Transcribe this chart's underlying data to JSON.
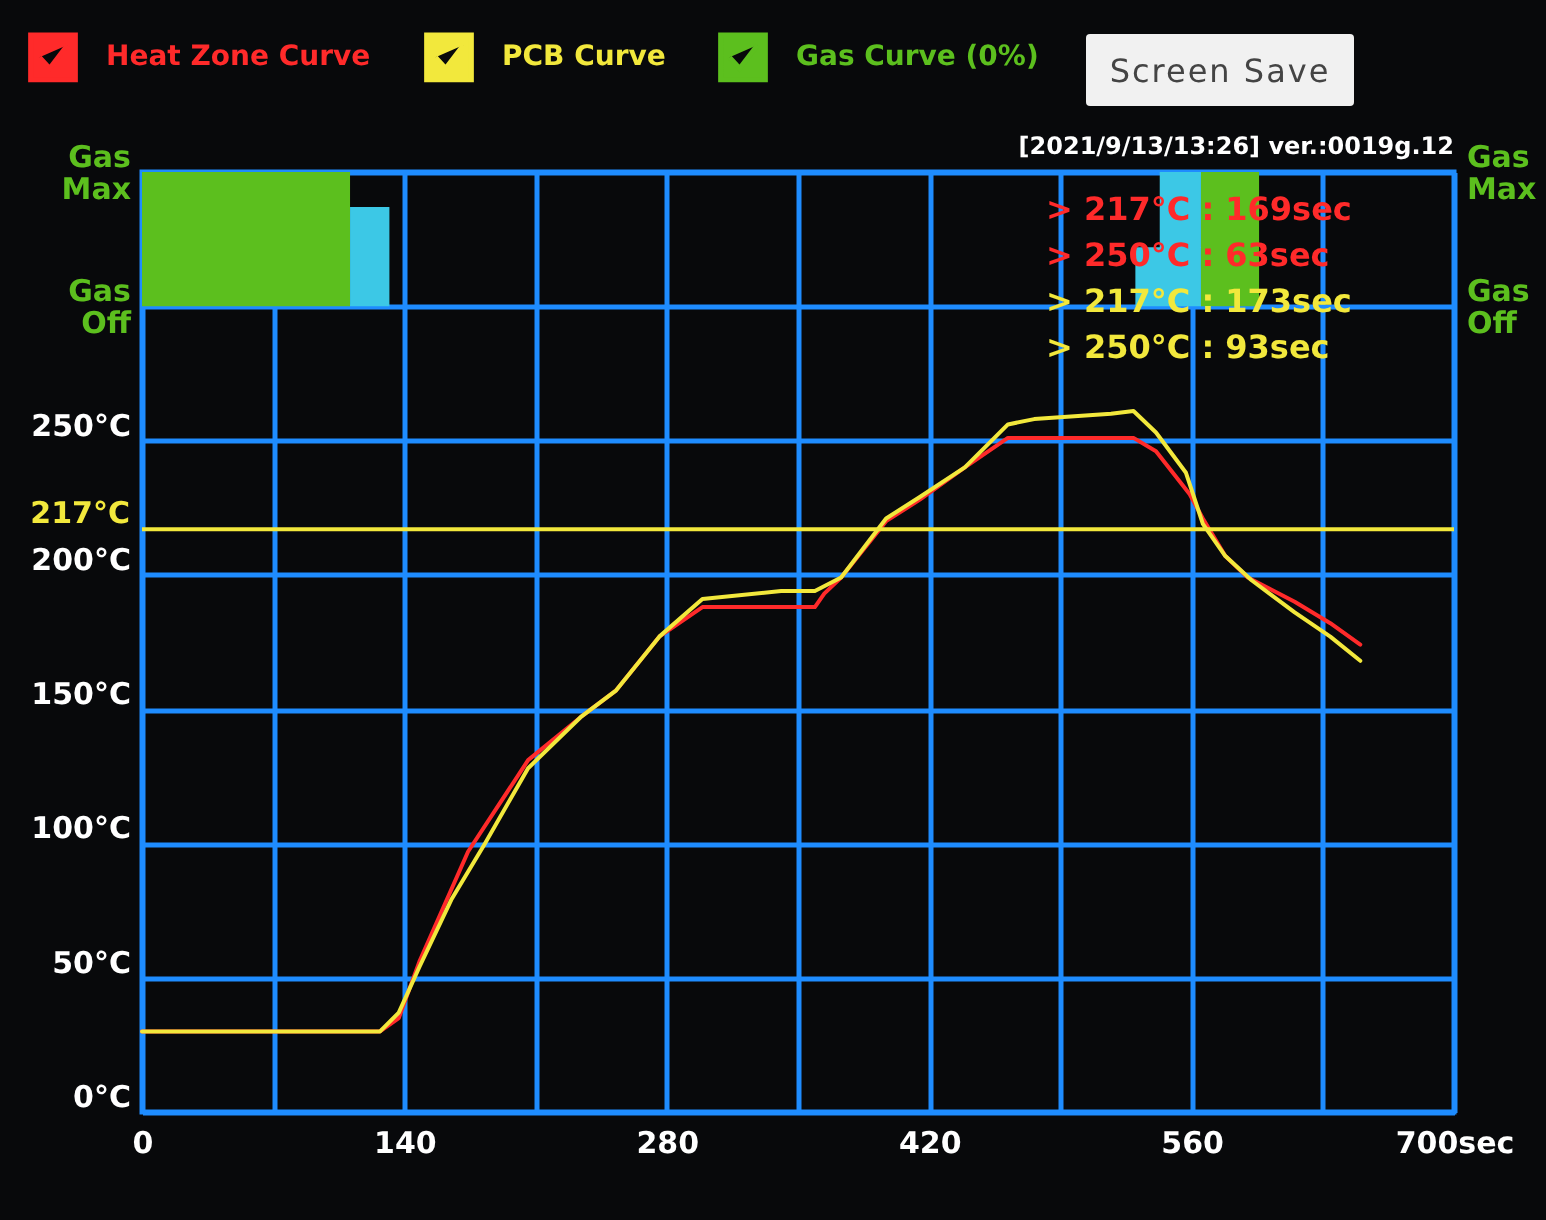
{
  "chart_data": {
    "type": "line",
    "annotations": [
      "Screen Save",
      "[2021/9/13/13:26] ver.:0019g.12",
      "> 217°C : 169sec",
      "> 250°C : 63sec",
      "> 217°C : 173sec",
      "> 250°C : 93sec"
    ],
    "xlim": [
      0,
      700
    ],
    "xticks": [
      0,
      {
        "value": 70,
        "label": null
      },
      140,
      {
        "value": 210,
        "label": null
      },
      280,
      {
        "value": 350,
        "label": null
      },
      420,
      {
        "value": 490,
        "label": null
      },
      560,
      {
        "value": 630,
        "label": null
      },
      {
        "value": 700,
        "label": "700sec"
      }
    ],
    "ylim": [
      0,
      350
    ],
    "yticks": [
      {
        "value": 0,
        "label": "0°C"
      },
      {
        "value": 50,
        "label": "50°C"
      },
      {
        "value": 100,
        "label": "100°C"
      },
      {
        "value": 150,
        "label": "150°C"
      },
      {
        "value": 200,
        "label": "200°C"
      },
      {
        "value": 250,
        "label": "250°C"
      },
      {
        "value": 300,
        "label": "Gas Off"
      },
      {
        "value": 350,
        "label": "Gas Max"
      }
    ],
    "ref_lines": [
      {
        "axis": "y",
        "value": 217,
        "label": "217°C",
        "color": "#f2e83c"
      }
    ],
    "grid": true,
    "legend": "top",
    "marker": "none",
    "line_style": "solid",
    "series": [
      {
        "name": "Heat Zone Curve",
        "color": "#ff2a2a",
        "x": [
          0,
          127,
          137,
          148,
          174,
          206,
          234,
          253,
          276,
          299,
          341,
          359,
          364,
          373,
          397,
          415,
          439,
          462,
          476,
          517,
          529,
          541,
          559,
          566,
          578,
          590,
          615,
          634,
          650
        ],
        "values": [
          30,
          30,
          35,
          56,
          97,
          131,
          147,
          157,
          177,
          188,
          188,
          188,
          193,
          199,
          220,
          228,
          240,
          251,
          251,
          251,
          251,
          246,
          230,
          221,
          207,
          199,
          190,
          182,
          174
        ]
      },
      {
        "name": "PCB Curve",
        "color": "#f2e83c",
        "x": [
          0,
          127,
          137,
          148,
          165,
          183,
          206,
          234,
          253,
          276,
          299,
          341,
          359,
          373,
          397,
          415,
          439,
          462,
          476,
          517,
          529,
          541,
          557,
          566,
          578,
          592,
          615,
          634,
          650
        ],
        "values": [
          30,
          30,
          37,
          54,
          79,
          100,
          128,
          147,
          157,
          177,
          191,
          194,
          194,
          199,
          221,
          229,
          240,
          256,
          258,
          260,
          261,
          253,
          238,
          219,
          207,
          198,
          186,
          177,
          168
        ]
      },
      {
        "name": "Gas Curve (0%)",
        "type": "area",
        "color": "#5cbf1e",
        "x": [
          0,
          111,
          565,
          596,
          700
        ],
        "values": [
          350,
          300,
          350,
          300,
          300
        ]
      },
      {
        "type": "area",
        "color": "#3cc8e6",
        "x": [
          111,
          132,
          530,
          543,
          565
        ],
        "values": [
          337,
          300,
          322,
          350,
          300
        ]
      }
    ]
  }
}
